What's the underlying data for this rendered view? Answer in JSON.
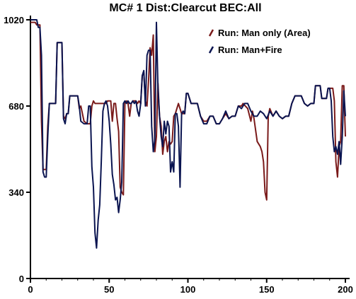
{
  "chart_data": {
    "type": "line",
    "title": "MC# 1 Dist:Clearcut   BEC:All",
    "xlabel": "",
    "ylabel": "",
    "xlim": [
      0,
      200
    ],
    "ylim": [
      0,
      1020
    ],
    "x_ticks": [
      0,
      50,
      100,
      150,
      200
    ],
    "y_ticks": [
      0,
      340,
      680,
      1020
    ],
    "grid": false,
    "legend_position": "top-right",
    "series": [
      {
        "name": "Run: Man only (Area)",
        "color": "#7a1a1a",
        "points": [
          [
            0,
            1010
          ],
          [
            3,
            1010
          ],
          [
            4,
            1000
          ],
          [
            6,
            1000
          ],
          [
            7,
            620
          ],
          [
            8,
            430
          ],
          [
            10,
            430
          ],
          [
            11,
            600
          ],
          [
            12,
            690
          ],
          [
            16,
            690
          ],
          [
            17,
            930
          ],
          [
            20,
            930
          ],
          [
            21,
            640
          ],
          [
            22,
            630
          ],
          [
            23,
            650
          ],
          [
            24,
            650
          ],
          [
            25,
            720
          ],
          [
            30,
            720
          ],
          [
            31,
            670
          ],
          [
            32,
            680
          ],
          [
            34,
            620
          ],
          [
            36,
            610
          ],
          [
            38,
            610
          ],
          [
            39,
            680
          ],
          [
            40,
            700
          ],
          [
            41,
            690
          ],
          [
            44,
            690
          ],
          [
            46,
            690
          ],
          [
            48,
            690
          ],
          [
            49,
            700
          ],
          [
            51,
            700
          ],
          [
            52,
            620
          ],
          [
            53,
            690
          ],
          [
            54,
            690
          ],
          [
            55,
            630
          ],
          [
            56,
            580
          ],
          [
            57,
            360
          ],
          [
            58,
            340
          ],
          [
            59,
            330
          ],
          [
            60,
            690
          ],
          [
            61,
            700
          ],
          [
            62,
            690
          ],
          [
            63,
            640
          ],
          [
            64,
            690
          ],
          [
            65,
            700
          ],
          [
            67,
            700
          ],
          [
            68,
            690
          ],
          [
            69,
            700
          ],
          [
            70,
            690
          ],
          [
            71,
            800
          ],
          [
            72,
            810
          ],
          [
            73,
            700
          ],
          [
            74,
            680
          ],
          [
            75,
            780
          ],
          [
            76,
            910
          ],
          [
            77,
            880
          ],
          [
            78,
            960
          ],
          [
            79,
            500
          ],
          [
            80,
            560
          ],
          [
            81,
            770
          ],
          [
            82,
            640
          ],
          [
            83,
            600
          ],
          [
            84,
            490
          ],
          [
            85,
            540
          ],
          [
            86,
            560
          ],
          [
            87,
            500
          ],
          [
            88,
            540
          ],
          [
            89,
            530
          ],
          [
            90,
            540
          ],
          [
            91,
            640
          ],
          [
            92,
            650
          ],
          [
            94,
            690
          ],
          [
            96,
            650
          ],
          [
            98,
            650
          ],
          [
            99,
            730
          ],
          [
            100,
            730
          ],
          [
            102,
            690
          ],
          [
            104,
            690
          ],
          [
            106,
            690
          ],
          [
            108,
            640
          ],
          [
            110,
            620
          ],
          [
            112,
            620
          ],
          [
            114,
            640
          ],
          [
            116,
            640
          ],
          [
            118,
            610
          ],
          [
            120,
            610
          ],
          [
            122,
            630
          ],
          [
            124,
            650
          ],
          [
            126,
            630
          ],
          [
            128,
            640
          ],
          [
            130,
            640
          ],
          [
            132,
            680
          ],
          [
            134,
            680
          ],
          [
            135,
            690
          ],
          [
            138,
            670
          ],
          [
            140,
            620
          ],
          [
            141,
            660
          ],
          [
            142,
            630
          ],
          [
            144,
            540
          ],
          [
            145,
            530
          ],
          [
            146,
            520
          ],
          [
            147,
            500
          ],
          [
            148,
            460
          ],
          [
            149,
            340
          ],
          [
            150,
            310
          ],
          [
            151,
            640
          ],
          [
            152,
            670
          ],
          [
            154,
            640
          ],
          [
            156,
            660
          ],
          [
            158,
            640
          ],
          [
            160,
            630
          ],
          [
            162,
            640
          ],
          [
            164,
            640
          ],
          [
            166,
            690
          ],
          [
            168,
            720
          ],
          [
            170,
            720
          ],
          [
            172,
            720
          ],
          [
            174,
            690
          ],
          [
            176,
            680
          ],
          [
            178,
            690
          ],
          [
            180,
            690
          ],
          [
            181,
            760
          ],
          [
            184,
            760
          ],
          [
            185,
            710
          ],
          [
            188,
            710
          ],
          [
            189,
            750
          ],
          [
            192,
            750
          ],
          [
            193,
            700
          ],
          [
            194,
            460
          ],
          [
            195,
            400
          ],
          [
            196,
            520
          ],
          [
            197,
            540
          ],
          [
            198,
            760
          ],
          [
            199,
            760
          ],
          [
            200,
            560
          ]
        ]
      },
      {
        "name": "Run: Man+Fire",
        "color": "#0a1450",
        "points": [
          [
            0,
            1020
          ],
          [
            4,
            1020
          ],
          [
            5,
            990
          ],
          [
            6,
            990
          ],
          [
            7,
            880
          ],
          [
            8,
            420
          ],
          [
            9,
            400
          ],
          [
            10,
            400
          ],
          [
            11,
            560
          ],
          [
            12,
            690
          ],
          [
            16,
            690
          ],
          [
            17,
            930
          ],
          [
            20,
            930
          ],
          [
            21,
            630
          ],
          [
            22,
            610
          ],
          [
            23,
            650
          ],
          [
            24,
            650
          ],
          [
            25,
            720
          ],
          [
            30,
            720
          ],
          [
            31,
            680
          ],
          [
            32,
            620
          ],
          [
            34,
            610
          ],
          [
            36,
            610
          ],
          [
            37,
            680
          ],
          [
            38,
            680
          ],
          [
            39,
            440
          ],
          [
            40,
            360
          ],
          [
            41,
            180
          ],
          [
            42,
            120
          ],
          [
            43,
            230
          ],
          [
            44,
            290
          ],
          [
            45,
            460
          ],
          [
            46,
            660
          ],
          [
            47,
            690
          ],
          [
            48,
            700
          ],
          [
            49,
            680
          ],
          [
            50,
            620
          ],
          [
            51,
            530
          ],
          [
            52,
            410
          ],
          [
            53,
            370
          ],
          [
            54,
            310
          ],
          [
            55,
            320
          ],
          [
            56,
            260
          ],
          [
            57,
            310
          ],
          [
            58,
            380
          ],
          [
            59,
            690
          ],
          [
            60,
            700
          ],
          [
            61,
            690
          ],
          [
            62,
            700
          ],
          [
            63,
            690
          ],
          [
            64,
            690
          ],
          [
            65,
            700
          ],
          [
            66,
            690
          ],
          [
            67,
            700
          ],
          [
            68,
            660
          ],
          [
            69,
            640
          ],
          [
            70,
            690
          ],
          [
            71,
            800
          ],
          [
            72,
            820
          ],
          [
            73,
            680
          ],
          [
            74,
            880
          ],
          [
            75,
            900
          ],
          [
            76,
            900
          ],
          [
            77,
            600
          ],
          [
            78,
            500
          ],
          [
            79,
            550
          ],
          [
            80,
            1010
          ],
          [
            81,
            750
          ],
          [
            82,
            640
          ],
          [
            83,
            560
          ],
          [
            84,
            520
          ],
          [
            85,
            620
          ],
          [
            86,
            570
          ],
          [
            87,
            620
          ],
          [
            88,
            600
          ],
          [
            89,
            420
          ],
          [
            90,
            460
          ],
          [
            91,
            420
          ],
          [
            92,
            650
          ],
          [
            93,
            650
          ],
          [
            94,
            600
          ],
          [
            95,
            360
          ],
          [
            96,
            650
          ],
          [
            97,
            660
          ],
          [
            98,
            650
          ],
          [
            99,
            730
          ],
          [
            100,
            730
          ],
          [
            102,
            690
          ],
          [
            104,
            690
          ],
          [
            106,
            690
          ],
          [
            108,
            640
          ],
          [
            110,
            610
          ],
          [
            112,
            610
          ],
          [
            114,
            640
          ],
          [
            116,
            640
          ],
          [
            118,
            610
          ],
          [
            120,
            610
          ],
          [
            122,
            630
          ],
          [
            124,
            660
          ],
          [
            126,
            630
          ],
          [
            128,
            640
          ],
          [
            130,
            640
          ],
          [
            132,
            680
          ],
          [
            134,
            670
          ],
          [
            136,
            690
          ],
          [
            138,
            690
          ],
          [
            140,
            660
          ],
          [
            142,
            640
          ],
          [
            144,
            640
          ],
          [
            146,
            660
          ],
          [
            148,
            650
          ],
          [
            150,
            630
          ],
          [
            152,
            660
          ],
          [
            154,
            640
          ],
          [
            156,
            660
          ],
          [
            158,
            640
          ],
          [
            160,
            630
          ],
          [
            162,
            640
          ],
          [
            164,
            640
          ],
          [
            166,
            690
          ],
          [
            168,
            720
          ],
          [
            170,
            720
          ],
          [
            172,
            720
          ],
          [
            174,
            690
          ],
          [
            176,
            680
          ],
          [
            178,
            690
          ],
          [
            180,
            690
          ],
          [
            181,
            760
          ],
          [
            184,
            760
          ],
          [
            185,
            710
          ],
          [
            188,
            710
          ],
          [
            189,
            750
          ],
          [
            190,
            750
          ],
          [
            191,
            700
          ],
          [
            192,
            560
          ],
          [
            193,
            500
          ],
          [
            194,
            520
          ],
          [
            195,
            490
          ],
          [
            196,
            540
          ],
          [
            197,
            450
          ],
          [
            198,
            560
          ],
          [
            199,
            740
          ],
          [
            200,
            640
          ]
        ]
      }
    ]
  }
}
